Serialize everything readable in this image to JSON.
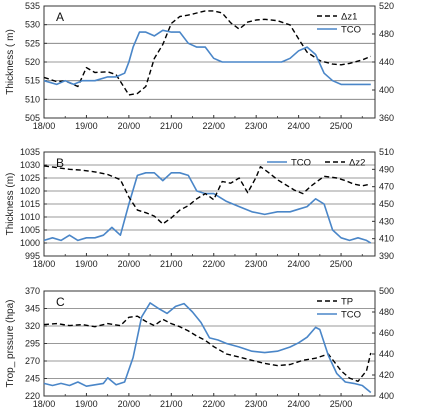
{
  "chart_data": [
    {
      "type": "line",
      "panel": "A",
      "ylabel": "Thickness ( m)",
      "x_ticks": [
        "18/00",
        "19/00",
        "20/00",
        "21/00",
        "22/00",
        "23/00",
        "24/00",
        "25/00"
      ],
      "xlim": [
        0,
        7.8
      ],
      "ylim_left": [
        505,
        535
      ],
      "yticks_left": [
        505,
        510,
        515,
        520,
        525,
        530,
        535
      ],
      "ylim_right": [
        360,
        520
      ],
      "yticks_right": [
        360,
        400,
        440,
        480,
        520
      ],
      "legend": "top-right",
      "grid": "horizontal",
      "series": [
        {
          "name": "Δz1",
          "axis": "right",
          "style": "dashed",
          "color": "#000000",
          "x": [
            0,
            0.3,
            0.5,
            0.8,
            1.0,
            1.2,
            1.5,
            1.7,
            2.0,
            2.2,
            2.4,
            2.6,
            2.8,
            3.0,
            3.2,
            3.4,
            3.6,
            3.8,
            4.0,
            4.2,
            4.4,
            4.6,
            4.8,
            5.0,
            5.2,
            5.5,
            5.8,
            6.0,
            6.2,
            6.5,
            6.8,
            7.0,
            7.2,
            7.5,
            7.7
          ],
          "y": [
            418,
            412,
            413,
            405,
            432,
            425,
            426,
            422,
            393,
            395,
            405,
            445,
            465,
            495,
            505,
            507,
            510,
            513,
            513,
            510,
            496,
            487,
            497,
            500,
            501,
            499,
            493,
            473,
            454,
            442,
            437,
            436,
            438,
            443,
            448
          ]
        },
        {
          "name": "TCO",
          "axis": "left",
          "style": "solid",
          "color": "#4a86c8",
          "x": [
            0,
            0.3,
            0.5,
            0.7,
            0.9,
            1.2,
            1.5,
            1.7,
            1.9,
            2.0,
            2.1,
            2.25,
            2.4,
            2.6,
            2.8,
            3.0,
            3.2,
            3.4,
            3.6,
            3.8,
            4.0,
            4.2,
            4.4,
            4.6,
            4.8,
            5.0,
            5.3,
            5.6,
            5.8,
            6.0,
            6.2,
            6.4,
            6.6,
            6.8,
            7.0,
            7.2,
            7.4,
            7.6,
            7.7
          ],
          "y": [
            515,
            514,
            515,
            514,
            515,
            515,
            516,
            516,
            517,
            520,
            524,
            528,
            528,
            527,
            528.5,
            528,
            528,
            525,
            524,
            524,
            521,
            520,
            520,
            520,
            520,
            520,
            520,
            520,
            521,
            523,
            524,
            522,
            517,
            515,
            514,
            514,
            514,
            514,
            514
          ]
        }
      ]
    },
    {
      "type": "line",
      "panel": "B",
      "ylabel": "Thickness (m)",
      "x_ticks": [
        "18/00",
        "19/00",
        "20/00",
        "21/00",
        "22/00",
        "23/00",
        "24/00",
        "25/00"
      ],
      "xlim": [
        0,
        7.8
      ],
      "ylim_left": [
        995,
        1035
      ],
      "yticks_left": [
        995,
        1000,
        1005,
        1010,
        1015,
        1020,
        1025,
        1030,
        1035
      ],
      "ylim_right": [
        390,
        510
      ],
      "yticks_right": [
        390,
        410,
        430,
        450,
        470,
        490,
        510
      ],
      "legend": "top-right",
      "grid": "horizontal",
      "series": [
        {
          "name": "TCO",
          "axis": "left",
          "style": "solid",
          "color": "#4a86c8",
          "x": [
            0,
            0.2,
            0.4,
            0.6,
            0.8,
            1.0,
            1.2,
            1.4,
            1.6,
            1.8,
            2.0,
            2.2,
            2.4,
            2.6,
            2.8,
            3.0,
            3.2,
            3.4,
            3.6,
            3.8,
            4.0,
            4.3,
            4.6,
            4.9,
            5.2,
            5.5,
            5.8,
            6.0,
            6.2,
            6.4,
            6.6,
            6.8,
            7.0,
            7.2,
            7.4,
            7.6,
            7.7
          ],
          "y": [
            1001,
            1002,
            1001,
            1003,
            1001,
            1002,
            1002,
            1003,
            1006,
            1003,
            1015,
            1026,
            1027,
            1027,
            1024,
            1027,
            1027,
            1026,
            1020,
            1019,
            1019,
            1016,
            1014,
            1012,
            1011,
            1012,
            1012,
            1013,
            1014,
            1017,
            1015,
            1005,
            1002,
            1001,
            1002,
            1001,
            1000
          ]
        },
        {
          "name": "Δz2",
          "axis": "right",
          "style": "dashed",
          "color": "#000000",
          "x": [
            0,
            0.3,
            0.6,
            0.9,
            1.2,
            1.5,
            1.8,
            2.0,
            2.2,
            2.4,
            2.6,
            2.8,
            3.0,
            3.2,
            3.4,
            3.6,
            3.8,
            4.0,
            4.2,
            4.4,
            4.6,
            4.8,
            5.0,
            5.1,
            5.3,
            5.5,
            5.7,
            5.9,
            6.1,
            6.3,
            6.6,
            6.9,
            7.1,
            7.3,
            7.5,
            7.7
          ],
          "y": [
            494,
            492,
            490,
            489,
            487,
            484,
            478,
            458,
            443,
            440,
            436,
            427,
            434,
            443,
            448,
            456,
            462,
            455,
            476,
            474,
            480,
            463,
            481,
            493,
            486,
            478,
            472,
            466,
            462,
            471,
            482,
            480,
            477,
            473,
            471,
            473
          ]
        }
      ]
    },
    {
      "type": "line",
      "panel": "C",
      "ylabel": "Trop_ prssure (hpa)",
      "x_ticks": [
        "18/00",
        "19/00",
        "20/00",
        "21/00",
        "22/00",
        "23/00",
        "24/00",
        "25/00"
      ],
      "xlim": [
        0,
        7.8
      ],
      "ylim_left": [
        220,
        370
      ],
      "yticks_left": [
        220,
        245,
        270,
        295,
        320,
        345,
        370
      ],
      "ylim_right": [
        400,
        500
      ],
      "yticks_right": [
        400,
        420,
        440,
        460,
        480,
        500
      ],
      "legend": "top-right",
      "grid": "horizontal",
      "series": [
        {
          "name": "TP",
          "axis": "right",
          "style": "dashed",
          "color": "#000000",
          "x": [
            0,
            0.3,
            0.6,
            0.9,
            1.2,
            1.5,
            1.8,
            2.0,
            2.2,
            2.4,
            2.6,
            2.8,
            3.0,
            3.2,
            3.4,
            3.6,
            3.8,
            4.0,
            4.3,
            4.6,
            4.9,
            5.2,
            5.5,
            5.8,
            6.1,
            6.4,
            6.7,
            7.0,
            7.2,
            7.4,
            7.6,
            7.7
          ],
          "y": [
            468,
            469,
            467,
            468,
            466,
            469,
            467,
            475,
            476,
            471,
            467,
            473,
            469,
            466,
            462,
            457,
            453,
            447,
            440,
            437,
            434,
            431,
            429,
            430,
            434,
            436,
            440,
            424,
            417,
            414,
            424,
            441
          ]
        },
        {
          "name": "TCO",
          "axis": "left",
          "style": "solid",
          "color": "#4a86c8",
          "x": [
            0,
            0.2,
            0.4,
            0.6,
            0.8,
            1.0,
            1.2,
            1.4,
            1.5,
            1.7,
            1.9,
            2.1,
            2.3,
            2.5,
            2.7,
            2.9,
            3.1,
            3.3,
            3.5,
            3.7,
            3.9,
            4.1,
            4.3,
            4.6,
            4.9,
            5.2,
            5.5,
            5.8,
            6.0,
            6.2,
            6.4,
            6.5,
            6.7,
            6.9,
            7.1,
            7.3,
            7.5,
            7.7
          ],
          "y": [
            238,
            235,
            238,
            235,
            240,
            234,
            236,
            238,
            246,
            236,
            240,
            275,
            333,
            353,
            345,
            338,
            348,
            352,
            340,
            325,
            303,
            300,
            295,
            290,
            284,
            282,
            284,
            290,
            296,
            304,
            318,
            315,
            278,
            252,
            240,
            238,
            235,
            225
          ]
        }
      ]
    }
  ]
}
